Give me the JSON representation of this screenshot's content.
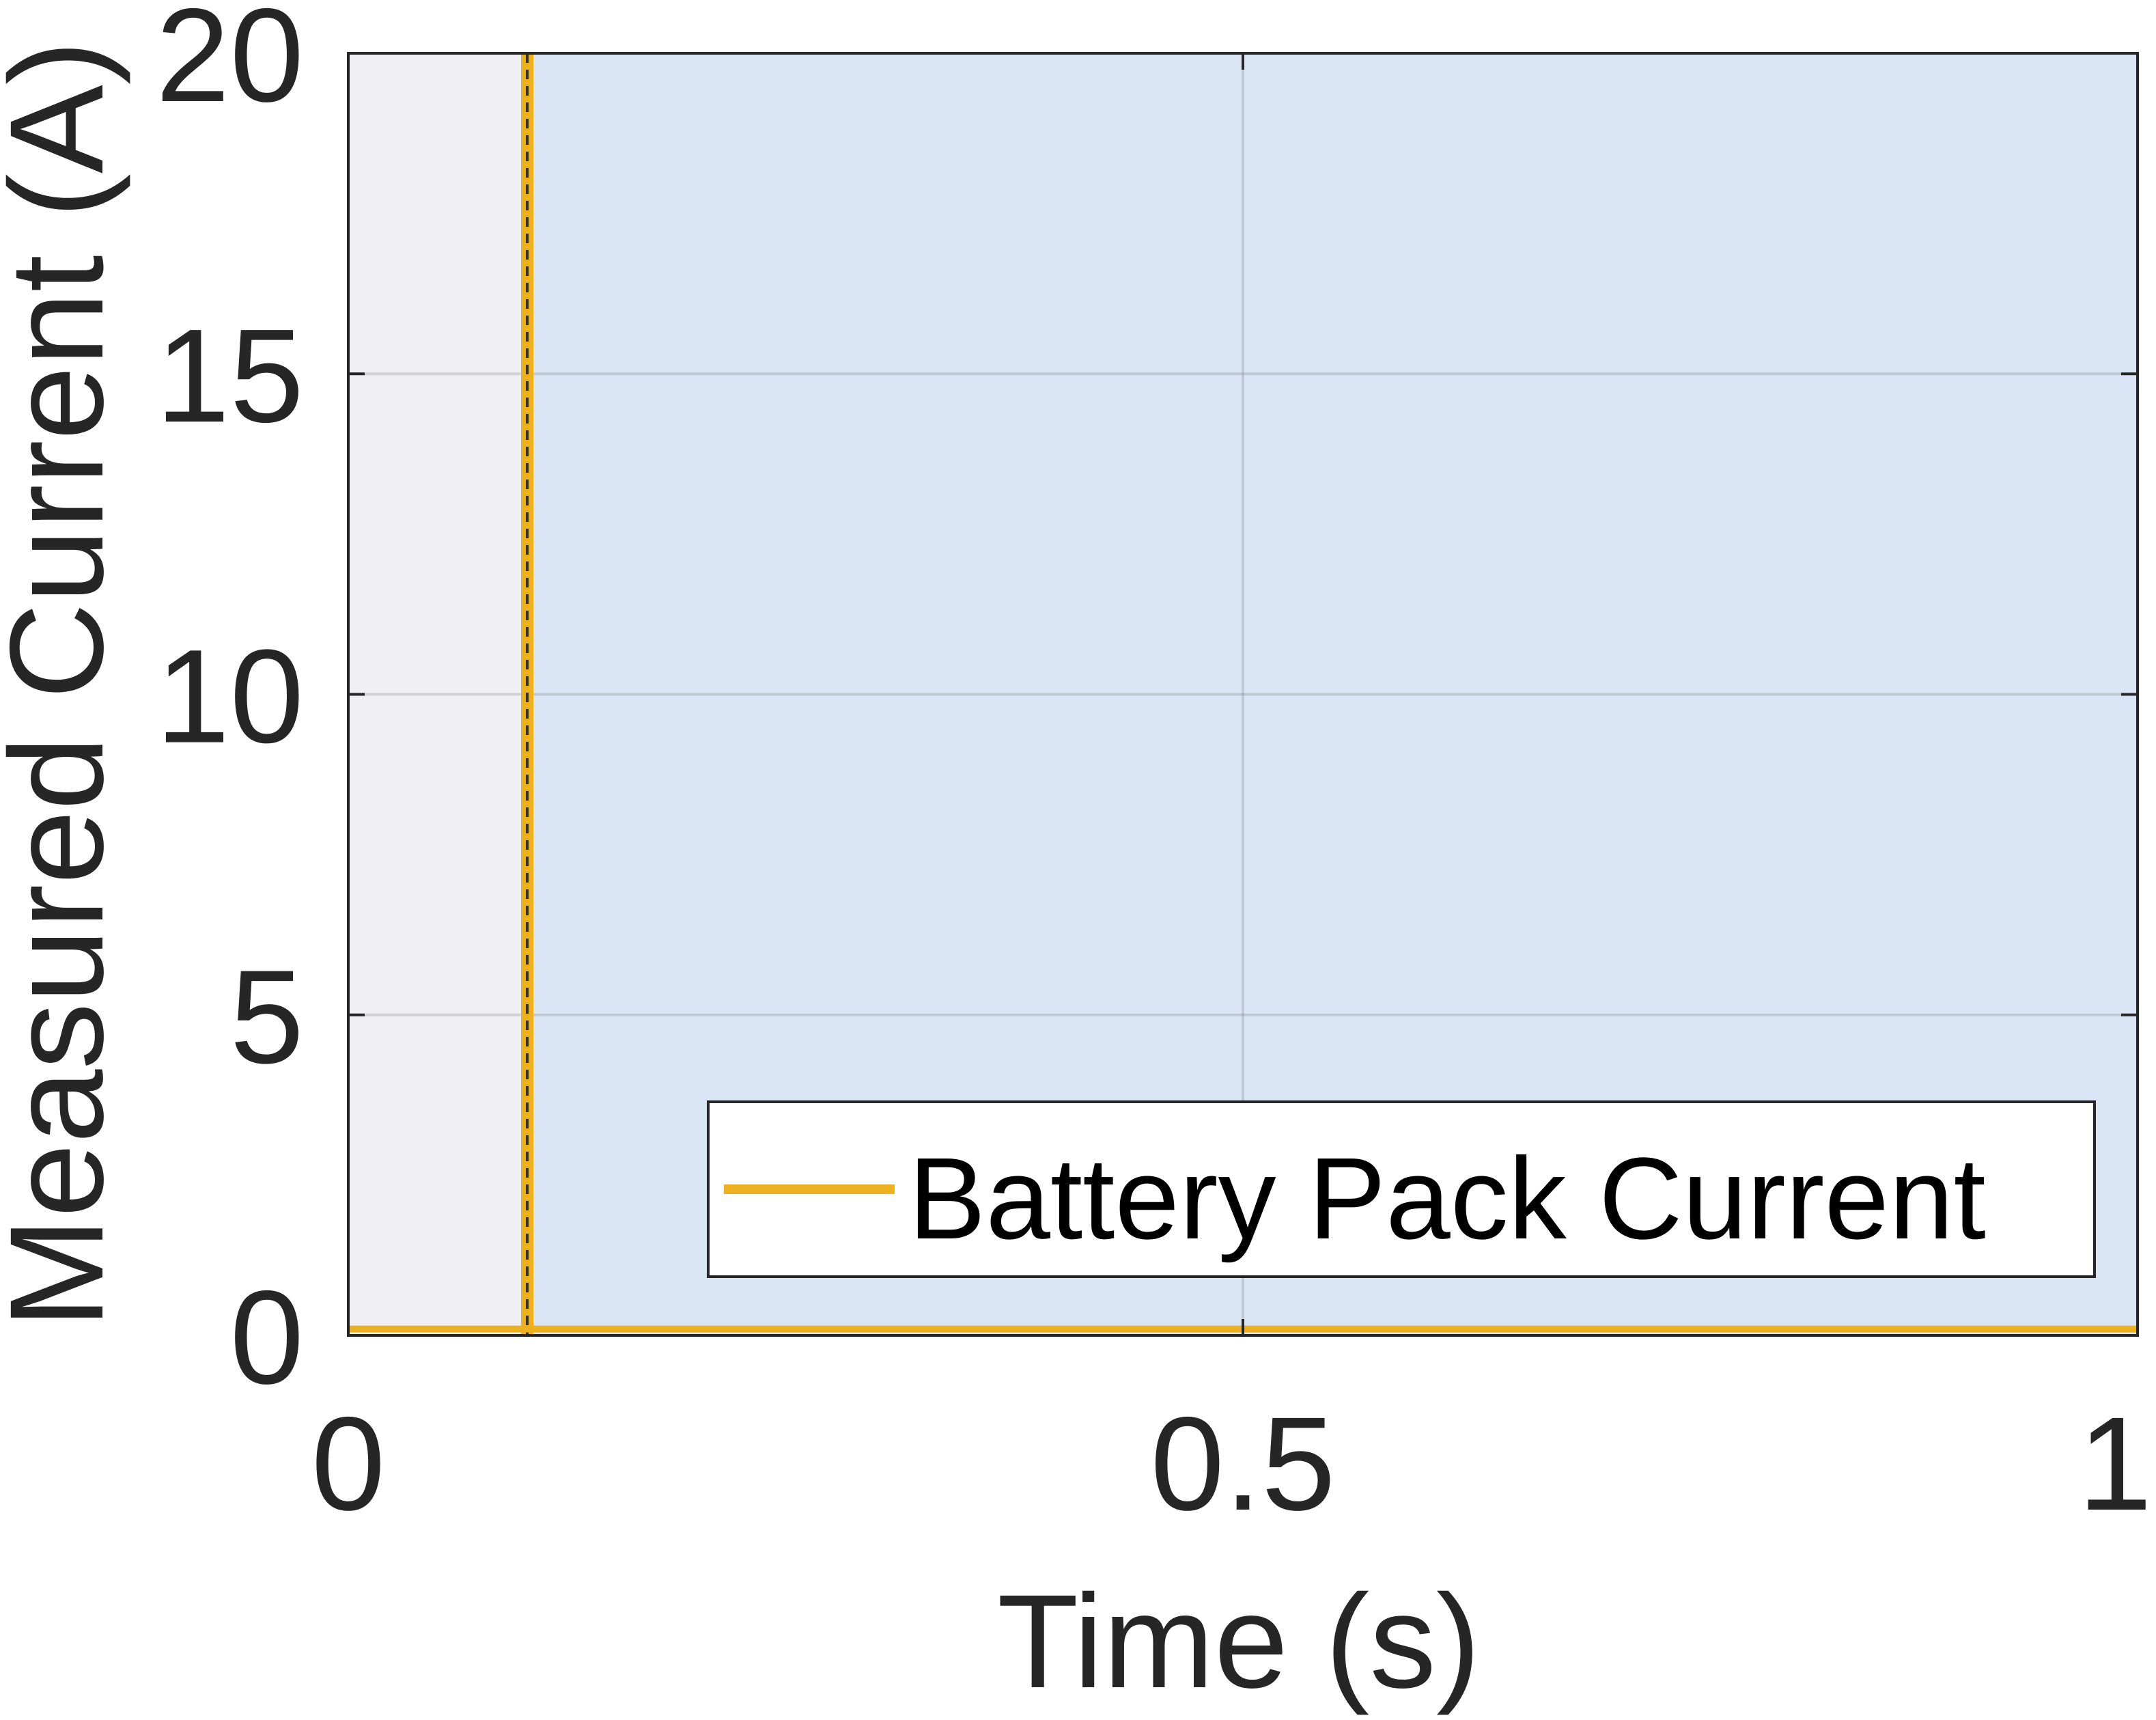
{
  "chart_data": {
    "type": "line",
    "title": "",
    "xlabel": "Time (s)",
    "ylabel": "Measured Current (A)",
    "xlim": [
      0,
      1
    ],
    "ylim": [
      0,
      20
    ],
    "xticks": [
      0,
      0.5,
      1
    ],
    "xtick_labels": [
      "0",
      "0.5",
      "1"
    ],
    "yticks": [
      0,
      5,
      10,
      15,
      20
    ],
    "ytick_labels": [
      "0",
      "5",
      "10",
      "15",
      "20"
    ],
    "grid": true,
    "legend_position": "bottom-right",
    "shaded_regions": [
      {
        "x_start": 0,
        "x_end": 0.1,
        "color": "#f0f0f2"
      },
      {
        "x_start": 0.1,
        "x_end": 1,
        "color": "#dae5f5"
      }
    ],
    "vertical_markers": [
      {
        "x": 0.1,
        "color": "#edb120",
        "style": "solid"
      },
      {
        "x": 0.1,
        "color": "#333333",
        "style": "dashed"
      }
    ],
    "series": [
      {
        "name": "Battery Pack Current",
        "color": "#edb120",
        "x": [
          0,
          0.1,
          0.5,
          1
        ],
        "y": [
          0.1,
          0.1,
          0.1,
          0.1
        ]
      }
    ]
  }
}
